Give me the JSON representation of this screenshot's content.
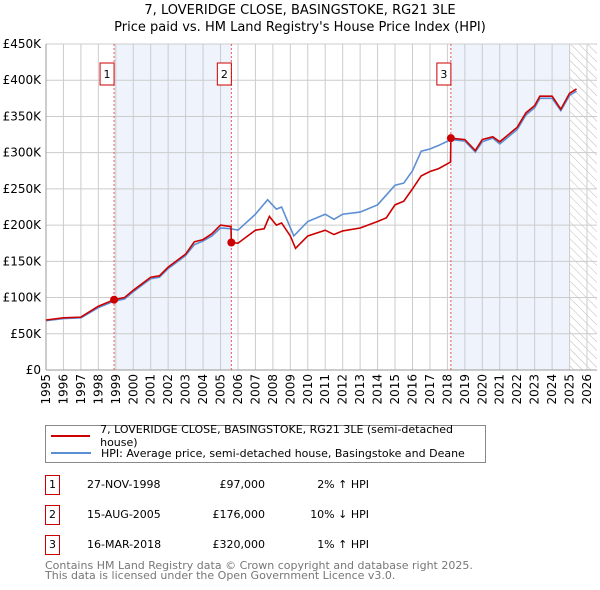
{
  "chart_data": {
    "type": "line",
    "title": "7, LOVERIDGE CLOSE, BASINGSTOKE, RG21 3LE",
    "subtitle": "Price paid vs. HM Land Registry's House Price Index (HPI)",
    "xlim": [
      1995,
      2026
    ],
    "ylim": [
      0,
      450000
    ],
    "y_ticks": [
      {
        "v": 0,
        "label": "£0"
      },
      {
        "v": 50000,
        "label": "£50K"
      },
      {
        "v": 100000,
        "label": "£100K"
      },
      {
        "v": 150000,
        "label": "£150K"
      },
      {
        "v": 200000,
        "label": "£200K"
      },
      {
        "v": 250000,
        "label": "£250K"
      },
      {
        "v": 300000,
        "label": "£300K"
      },
      {
        "v": 350000,
        "label": "£350K"
      },
      {
        "v": 400000,
        "label": "£400K"
      },
      {
        "v": 450000,
        "label": "£450K"
      }
    ],
    "x_ticks": [
      "1995",
      "1996",
      "1997",
      "1998",
      "1999",
      "2000",
      "2001",
      "2002",
      "2003",
      "2004",
      "2005",
      "2006",
      "2007",
      "2008",
      "2009",
      "2010",
      "2011",
      "2012",
      "2013",
      "2014",
      "2015",
      "2016",
      "2017",
      "2018",
      "2019",
      "2020",
      "2021",
      "2022",
      "2023",
      "2024",
      "2025",
      "2026"
    ],
    "grid": true,
    "series": [
      {
        "name": "7, LOVERIDGE CLOSE, BASINGSTOKE, RG21 3LE (semi-detached house)",
        "color": "#cc0000",
        "points": [
          [
            1995,
            69000
          ],
          [
            1996,
            72000
          ],
          [
            1997,
            73000
          ],
          [
            1998,
            88000
          ],
          [
            1998.9,
            97000
          ],
          [
            1999.5,
            100000
          ],
          [
            2000,
            110000
          ],
          [
            2001,
            128000
          ],
          [
            2001.5,
            130000
          ],
          [
            2002,
            142000
          ],
          [
            2003,
            160000
          ],
          [
            2003.5,
            177000
          ],
          [
            2004,
            180000
          ],
          [
            2004.5,
            188000
          ],
          [
            2005,
            200000
          ],
          [
            2005.6,
            198000
          ],
          [
            2005.62,
            176000
          ],
          [
            2006,
            175000
          ],
          [
            2007,
            193000
          ],
          [
            2007.5,
            195000
          ],
          [
            2007.8,
            212000
          ],
          [
            2008.2,
            200000
          ],
          [
            2008.5,
            203000
          ],
          [
            2009,
            185000
          ],
          [
            2009.3,
            168000
          ],
          [
            2010,
            185000
          ],
          [
            2011,
            193000
          ],
          [
            2011.5,
            187000
          ],
          [
            2012,
            192000
          ],
          [
            2013,
            196000
          ],
          [
            2014,
            205000
          ],
          [
            2014.5,
            210000
          ],
          [
            2015,
            228000
          ],
          [
            2015.5,
            233000
          ],
          [
            2016,
            250000
          ],
          [
            2016.5,
            268000
          ],
          [
            2017,
            274000
          ],
          [
            2017.5,
            278000
          ],
          [
            2018.18,
            287000
          ],
          [
            2018.2,
            320000
          ],
          [
            2019,
            318000
          ],
          [
            2019.6,
            303000
          ],
          [
            2020,
            318000
          ],
          [
            2020.6,
            322000
          ],
          [
            2021,
            315000
          ],
          [
            2021.5,
            325000
          ],
          [
            2022,
            335000
          ],
          [
            2022.5,
            355000
          ],
          [
            2023,
            365000
          ],
          [
            2023.3,
            378000
          ],
          [
            2024,
            378000
          ],
          [
            2024.5,
            360000
          ],
          [
            2025,
            382000
          ],
          [
            2025.4,
            388000
          ]
        ]
      },
      {
        "name": "HPI: Average price, semi-detached house, Basingstoke and Deane",
        "color": "#5b8fd4",
        "points": [
          [
            1995,
            68000
          ],
          [
            1996,
            71000
          ],
          [
            1997,
            72000
          ],
          [
            1998,
            86000
          ],
          [
            1998.9,
            95000
          ],
          [
            1999.5,
            98000
          ],
          [
            2000,
            108000
          ],
          [
            2001,
            126000
          ],
          [
            2001.5,
            128000
          ],
          [
            2002,
            140000
          ],
          [
            2003,
            158000
          ],
          [
            2003.5,
            173000
          ],
          [
            2004,
            178000
          ],
          [
            2004.5,
            185000
          ],
          [
            2005,
            196000
          ],
          [
            2005.6,
            195000
          ],
          [
            2006,
            193000
          ],
          [
            2007,
            215000
          ],
          [
            2007.7,
            235000
          ],
          [
            2008.2,
            222000
          ],
          [
            2008.5,
            225000
          ],
          [
            2009.2,
            185000
          ],
          [
            2010,
            205000
          ],
          [
            2011,
            215000
          ],
          [
            2011.5,
            208000
          ],
          [
            2012,
            215000
          ],
          [
            2013,
            218000
          ],
          [
            2014,
            228000
          ],
          [
            2015,
            255000
          ],
          [
            2015.5,
            258000
          ],
          [
            2016,
            275000
          ],
          [
            2016.5,
            302000
          ],
          [
            2017,
            305000
          ],
          [
            2017.5,
            310000
          ],
          [
            2018.2,
            318000
          ],
          [
            2019,
            316000
          ],
          [
            2019.6,
            301000
          ],
          [
            2020,
            315000
          ],
          [
            2020.6,
            320000
          ],
          [
            2021,
            312000
          ],
          [
            2021.5,
            322000
          ],
          [
            2022,
            332000
          ],
          [
            2022.5,
            352000
          ],
          [
            2023,
            362000
          ],
          [
            2023.3,
            375000
          ],
          [
            2024,
            375000
          ],
          [
            2024.5,
            358000
          ],
          [
            2025,
            379000
          ],
          [
            2025.4,
            385000
          ]
        ]
      }
    ],
    "sales": [
      {
        "id": "1",
        "x": 1998.9,
        "y": 97000
      },
      {
        "id": "2",
        "x": 2005.62,
        "y": 176000
      },
      {
        "id": "3",
        "x": 2018.2,
        "y": 320000
      }
    ],
    "forecast_from": 2025.0
  },
  "legend": {
    "price_label": "7, LOVERIDGE CLOSE, BASINGSTOKE, RG21 3LE (semi-detached house)",
    "hpi_label": "HPI: Average price, semi-detached house, Basingstoke and Deane"
  },
  "transactions": [
    {
      "id": "1",
      "date": "27-NOV-1998",
      "price": "£97,000",
      "hpi": "2% ↑ HPI"
    },
    {
      "id": "2",
      "date": "15-AUG-2005",
      "price": "£176,000",
      "hpi": "10% ↓ HPI"
    },
    {
      "id": "3",
      "date": "16-MAR-2018",
      "price": "£320,000",
      "hpi": "1% ↑ HPI"
    }
  ],
  "footer": {
    "line1": "Contains HM Land Registry data © Crown copyright and database right 2025.",
    "line2": "This data is licensed under the Open Government Licence v3.0."
  }
}
